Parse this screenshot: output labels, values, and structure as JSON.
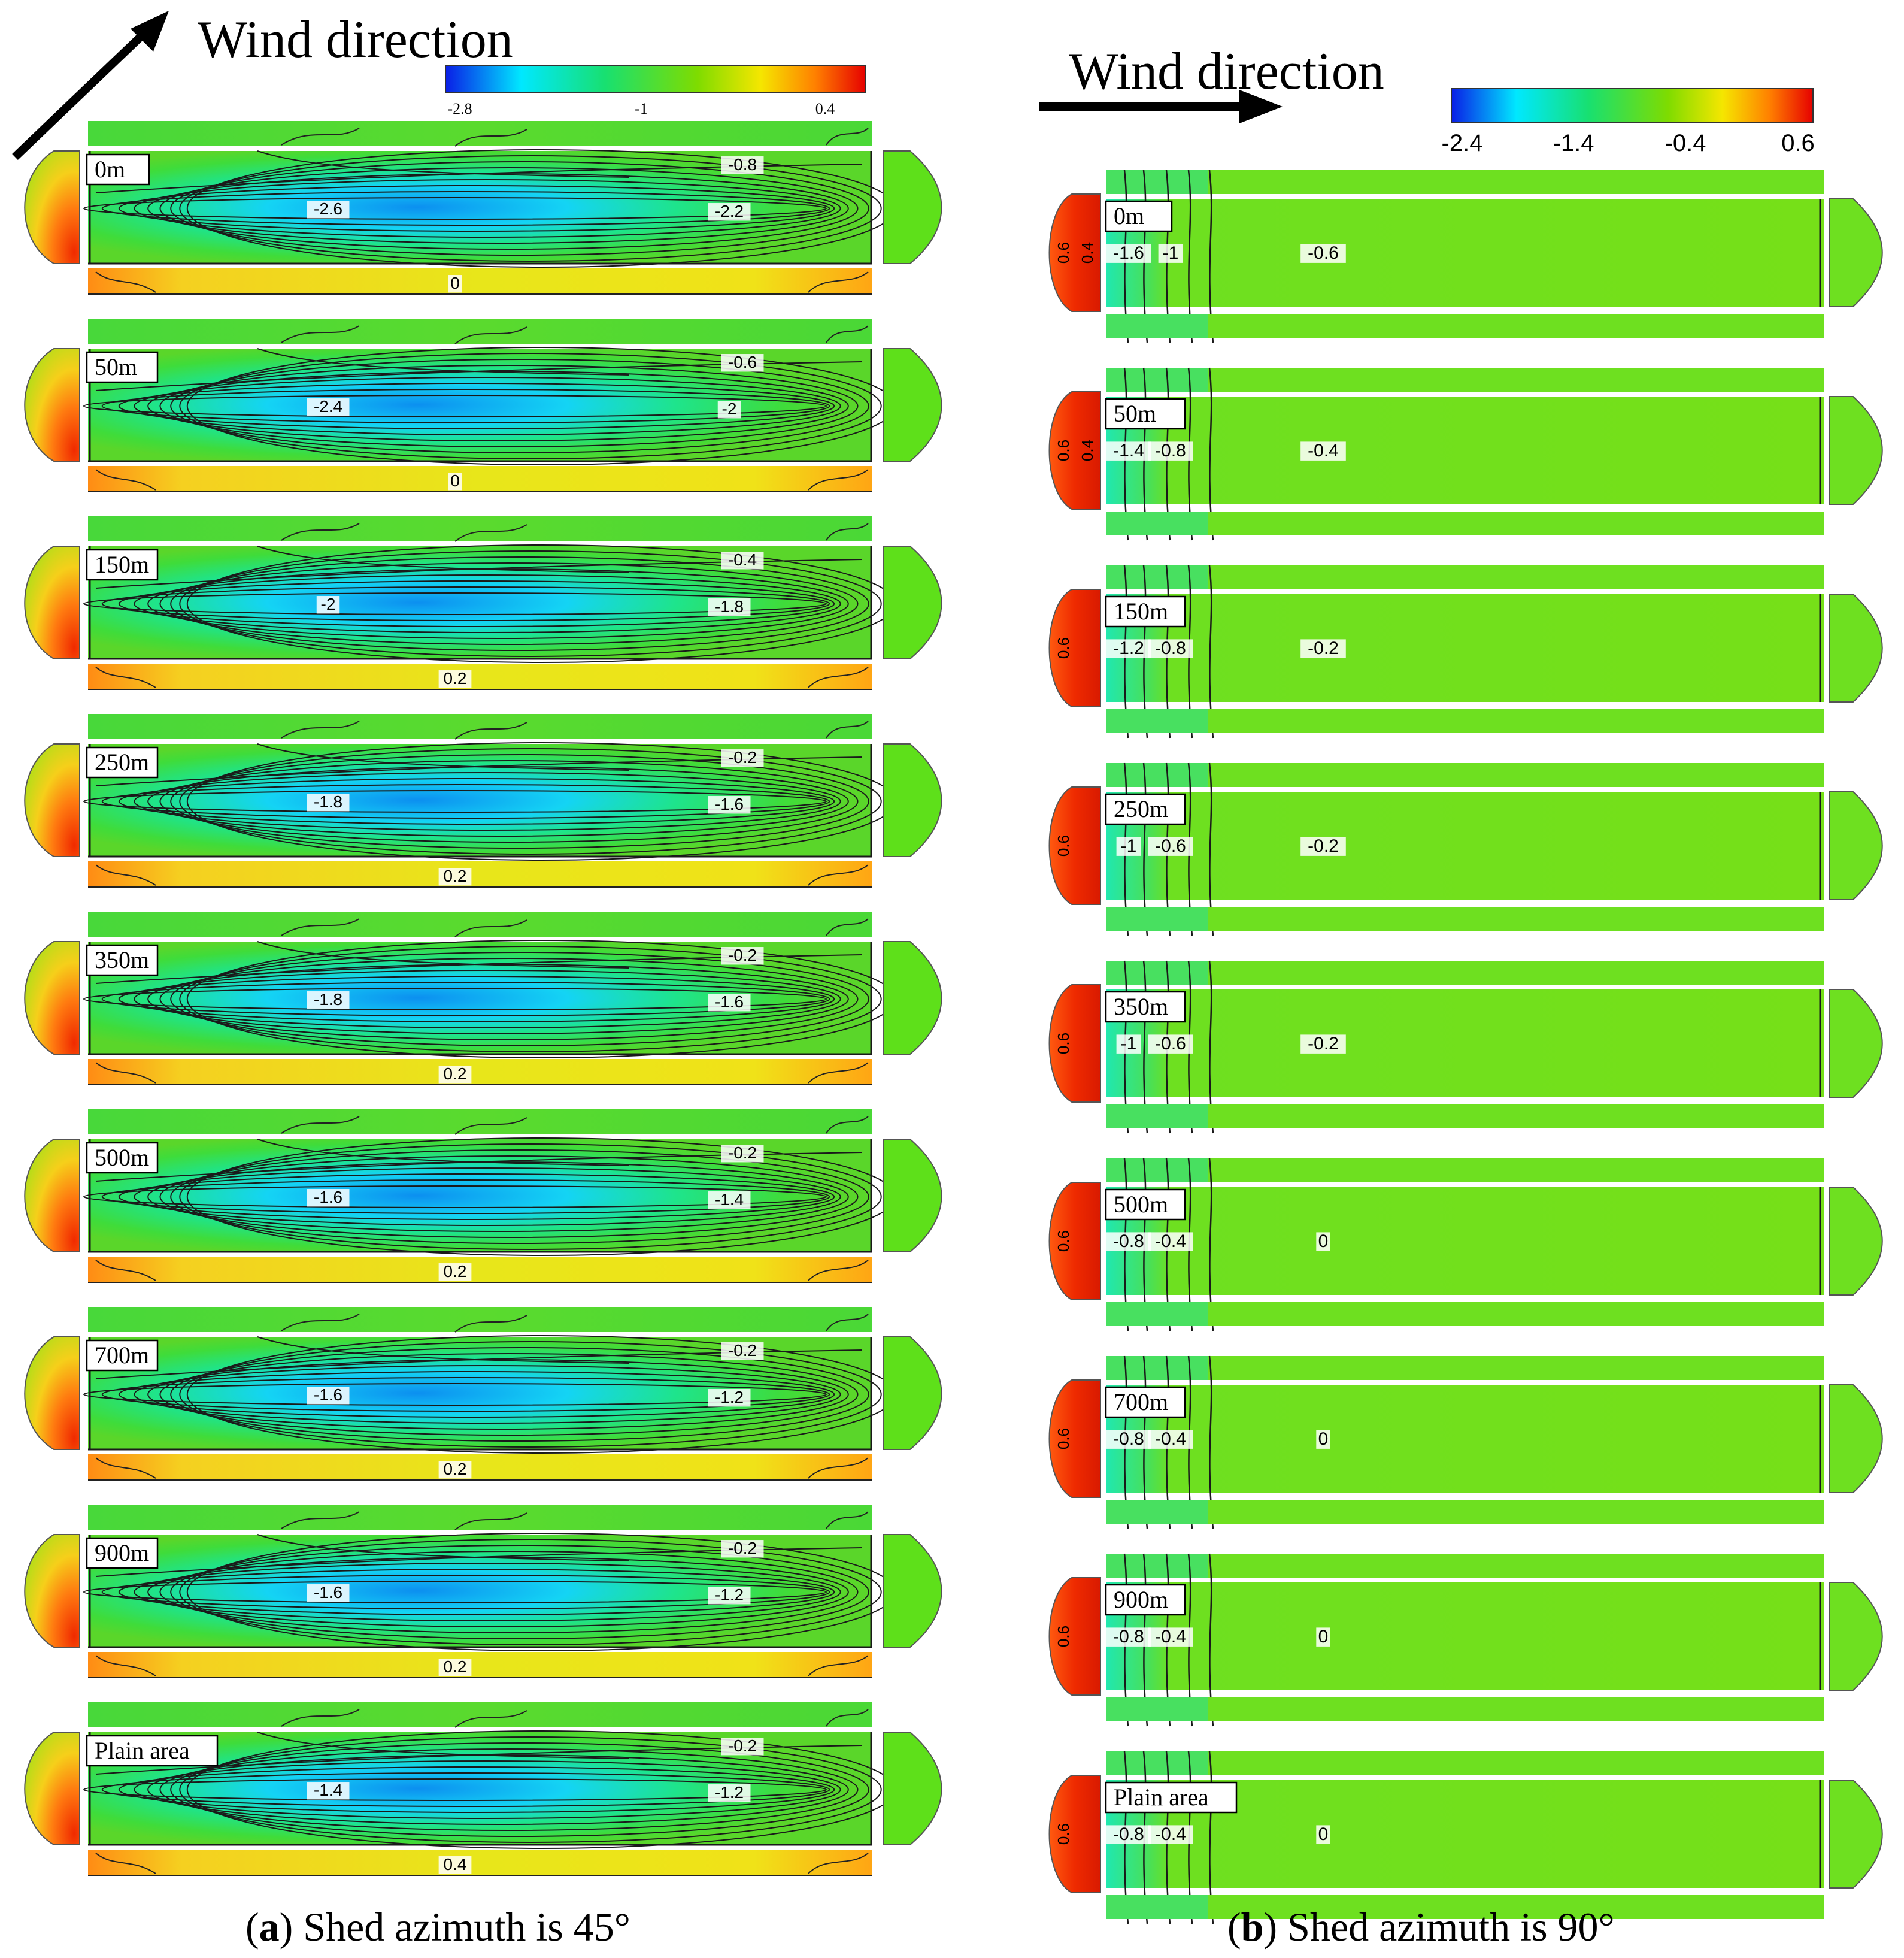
{
  "panels": [
    {
      "id": "a",
      "wind_label": "Wind direction",
      "wind_arrow": "diagonal-up-right",
      "colorbar": {
        "ticks": [
          "-2.8",
          "-1",
          "0.4"
        ],
        "colors": [
          "#0a1ee6",
          "#00e8ff",
          "#18e070",
          "#7fdc00",
          "#f5e600",
          "#ff8000",
          "#e60000"
        ]
      },
      "caption_letter": "a",
      "caption_text": ") Shed azimuth is 45°",
      "rows": [
        {
          "label": "0m",
          "contours": [
            "-2.6",
            "-2.2",
            "-0.8",
            "0"
          ]
        },
        {
          "label": "50m",
          "contours": [
            "-2.4",
            "-2",
            "-0.6",
            "0"
          ]
        },
        {
          "label": "150m",
          "contours": [
            "-2",
            "-1.8",
            "-0.4",
            "0.2"
          ]
        },
        {
          "label": "250m",
          "contours": [
            "-1.8",
            "-1.6",
            "-0.2",
            "0.2"
          ]
        },
        {
          "label": "350m",
          "contours": [
            "-1.8",
            "-1.6",
            "-0.2",
            "0.2"
          ]
        },
        {
          "label": "500m",
          "contours": [
            "-1.6",
            "-1.4",
            "-0.2",
            "0.2"
          ]
        },
        {
          "label": "700m",
          "contours": [
            "-1.6",
            "-1.2",
            "-0.2",
            "0.2"
          ]
        },
        {
          "label": "900m",
          "contours": [
            "-1.6",
            "-1.2",
            "-0.2",
            "0.2"
          ]
        },
        {
          "label": "Plain area",
          "contours": [
            "-1.4",
            "-1.2",
            "-0.2",
            "0.4"
          ]
        }
      ]
    },
    {
      "id": "b",
      "wind_label": "Wind direction",
      "wind_arrow": "horizontal-right",
      "colorbar": {
        "ticks": [
          "-2.4",
          "-1.4",
          "-0.4",
          "0.6"
        ],
        "colors": [
          "#0a1ee6",
          "#00e8ff",
          "#18e070",
          "#7fdc00",
          "#f5e600",
          "#ff8000",
          "#e60000"
        ]
      },
      "caption_letter": "b",
      "caption_text": ") Shed azimuth is 90°",
      "rows": [
        {
          "label": "0m",
          "contours": [
            "0.6",
            "0.4",
            "-1.6",
            "-1",
            "-0.6"
          ]
        },
        {
          "label": "50m",
          "contours": [
            "0.6",
            "0.4",
            "-1.4",
            "-0.8",
            "-0.4"
          ]
        },
        {
          "label": "150m",
          "contours": [
            "0.6",
            "-1.2",
            "-0.8",
            "-0.2"
          ]
        },
        {
          "label": "250m",
          "contours": [
            "0.6",
            "-1",
            "-0.6",
            "-0.2"
          ]
        },
        {
          "label": "350m",
          "contours": [
            "0.6",
            "-1",
            "-0.6",
            "-0.2"
          ]
        },
        {
          "label": "500m",
          "contours": [
            "0.6",
            "-0.8",
            "-0.4",
            "0"
          ]
        },
        {
          "label": "700m",
          "contours": [
            "0.6",
            "-0.8",
            "-0.4",
            "0"
          ]
        },
        {
          "label": "900m",
          "contours": [
            "0.6",
            "-0.8",
            "-0.4",
            "0"
          ]
        },
        {
          "label": "Plain area",
          "contours": [
            "0.6",
            "-0.8",
            "-0.4",
            "0"
          ]
        }
      ]
    }
  ]
}
